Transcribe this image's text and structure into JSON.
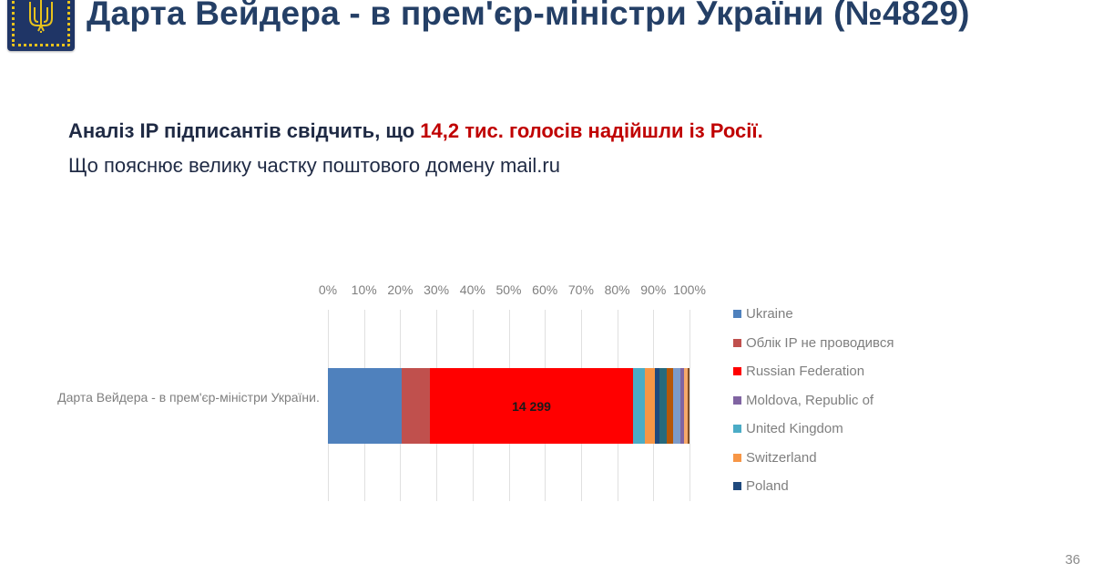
{
  "header": {
    "logo": "ukraine-trident-emblem",
    "title": "Дарта Вейдера - в прем'єр-міністри України (№4829)"
  },
  "summary": {
    "line1_prefix": "Аналіз IP підписантів свідчить, що ",
    "line1_highlight": "14,2 тис. голосів надійшли із Росії.",
    "line2": "Що пояснює велику частку поштового домену mail.ru",
    "highlight_color": "#c00000"
  },
  "page_number": "36",
  "chart_data": {
    "type": "bar",
    "orientation": "horizontal",
    "stacked": "100%",
    "title": "",
    "xlabel": "",
    "ylabel": "",
    "xlim": [
      0,
      100
    ],
    "grid": true,
    "legend_position": "right",
    "x_ticks": [
      "0%",
      "10%",
      "20%",
      "30%",
      "40%",
      "50%",
      "60%",
      "70%",
      "80%",
      "90%",
      "100%"
    ],
    "categories": [
      "Дарта Вейдера - в прем'єр-міністри України."
    ],
    "legend": [
      {
        "name": "Ukraine",
        "color": "#4f81bd"
      },
      {
        "name": "Облік IP не проводився",
        "color": "#c0504d"
      },
      {
        "name": "Russian Federation",
        "color": "#ff0000"
      },
      {
        "name": "Moldova, Republic of",
        "color": "#8064a2"
      },
      {
        "name": "United Kingdom",
        "color": "#4bacc6"
      },
      {
        "name": "Switzerland",
        "color": "#f79646"
      },
      {
        "name": "Poland",
        "color": "#1f497d"
      }
    ],
    "series": [
      {
        "name": "Ukraine",
        "values": [
          20.4
        ],
        "color": "#4f81bd",
        "label": ""
      },
      {
        "name": "Облік IP не проводився",
        "values": [
          7.8
        ],
        "color": "#c0504d",
        "label": ""
      },
      {
        "name": "Russian Federation",
        "values": [
          56.2
        ],
        "color": "#ff0000",
        "label": "14 299"
      },
      {
        "name": "United Kingdom",
        "values": [
          3.3
        ],
        "color": "#4bacc6",
        "label": ""
      },
      {
        "name": "Switzerland",
        "values": [
          2.8
        ],
        "color": "#f79646",
        "label": ""
      },
      {
        "name": "Poland",
        "values": [
          1.3
        ],
        "color": "#1f497d",
        "label": ""
      },
      {
        "name": "Other (teal)",
        "values": [
          2.0
        ],
        "color": "#276a7c",
        "label": ""
      },
      {
        "name": "Other (dark orange)",
        "values": [
          1.8
        ],
        "color": "#b65708",
        "label": ""
      },
      {
        "name": "Other (steel blue)",
        "values": [
          2.0
        ],
        "color": "#7c9bc9",
        "label": ""
      },
      {
        "name": "Moldova, Republic of",
        "values": [
          1.0
        ],
        "color": "#8064a2",
        "label": ""
      },
      {
        "name": "Other (light orange)",
        "values": [
          1.0
        ],
        "color": "#f6a96b",
        "label": ""
      },
      {
        "name": "Other (brown)",
        "values": [
          0.4
        ],
        "color": "#7f4d26",
        "label": ""
      }
    ]
  }
}
